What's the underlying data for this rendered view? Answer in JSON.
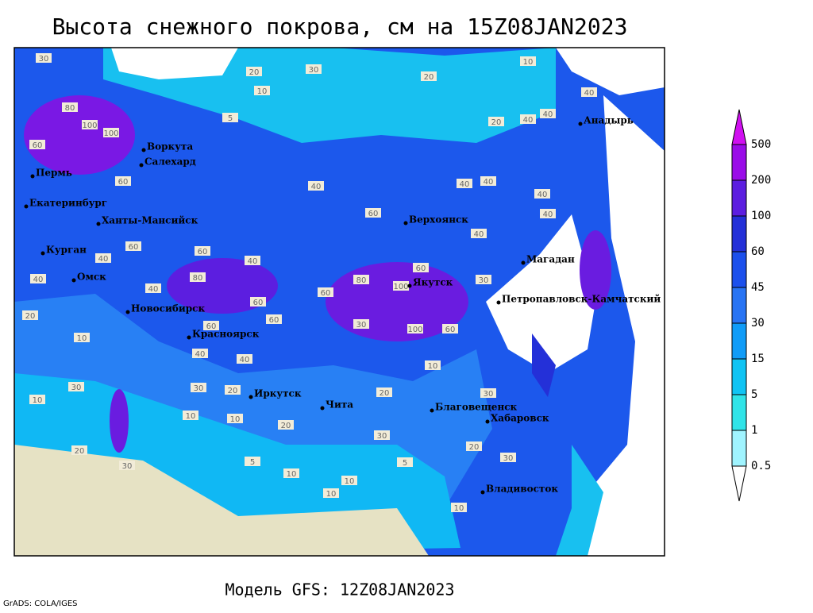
{
  "header": {
    "title": "Высота снежного покрова, см на 15Z08JAN2023"
  },
  "footer": {
    "model": "Модель GFS: 12Z08JAN2023",
    "credit": "GrADS: COLA/IGES"
  },
  "legend": {
    "levels": [
      0.5,
      1,
      5,
      15,
      30,
      45,
      60,
      100,
      200,
      500
    ],
    "colors": [
      "#ffffff",
      "#a0f4ff",
      "#30e4e8",
      "#10c4f4",
      "#109cf8",
      "#2874f4",
      "#1c50ec",
      "#2430d8",
      "#5c1ee0",
      "#9a0ce8",
      "#d010f0"
    ]
  },
  "cities": [
    "Воркута",
    "Салехард",
    "Пермь",
    "Екатеринбург",
    "Ханты-Мансийск",
    "Курган",
    "Омск",
    "Новосибирск",
    "Красноярск",
    "Иркутск",
    "Чита",
    "Благовещенск",
    "Хабаровск",
    "Владивосток",
    "Якутск",
    "Верхоянск",
    "Магадан",
    "Петропавловск-Камчатский",
    "Анадырь"
  ],
  "contour_labels": [
    30,
    80,
    100,
    100,
    60,
    60,
    20,
    30,
    20,
    10,
    20,
    40,
    40,
    40,
    5,
    10,
    40,
    60,
    40,
    40,
    40,
    40,
    40,
    40,
    40,
    60,
    60,
    40,
    40,
    80,
    60,
    60,
    80,
    100,
    60,
    30,
    20,
    10,
    100,
    60,
    30,
    60,
    60,
    40,
    40,
    30,
    10,
    30,
    20,
    10,
    10,
    20,
    10,
    30,
    20,
    30,
    5,
    10,
    5,
    20,
    30,
    10,
    10,
    10,
    20,
    30
  ]
}
